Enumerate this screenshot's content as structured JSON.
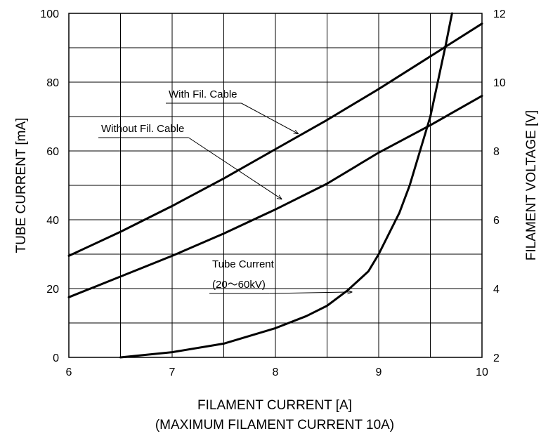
{
  "chart_data": {
    "type": "line",
    "title": "",
    "xlabel": "FILAMENT CURRENT  [A]",
    "xlabel_sub": "(MAXIMUM FILAMENT CURRENT  10A)",
    "ylabel_left": "TUBE CURRENT  [mA]",
    "ylabel_right": "FILAMENT VOLTAGE  [V]",
    "xlim": [
      6,
      10
    ],
    "ylim_left": [
      0,
      100
    ],
    "ylim_right": [
      2,
      12
    ],
    "grid": true,
    "x_ticks": [
      "6",
      "7",
      "8",
      "9",
      "10"
    ],
    "y_left_ticks": [
      "0",
      "20",
      "40",
      "60",
      "80",
      "100"
    ],
    "y_right_ticks": [
      "2",
      "4",
      "6",
      "8",
      "10",
      "12"
    ],
    "series": [
      {
        "name": "With Fil. Cable",
        "axis": "right",
        "points": [
          [
            6.0,
            4.95
          ],
          [
            6.5,
            5.65
          ],
          [
            7.0,
            6.4
          ],
          [
            7.5,
            7.2
          ],
          [
            8.0,
            8.05
          ],
          [
            8.5,
            8.9
          ],
          [
            9.0,
            9.8
          ],
          [
            9.5,
            10.75
          ],
          [
            10.0,
            11.7
          ]
        ]
      },
      {
        "name": "Without Fil. Cable",
        "axis": "right",
        "points": [
          [
            6.0,
            3.75
          ],
          [
            6.5,
            4.35
          ],
          [
            7.0,
            4.95
          ],
          [
            7.5,
            5.6
          ],
          [
            8.0,
            6.3
          ],
          [
            8.5,
            7.05
          ],
          [
            9.0,
            7.95
          ],
          [
            9.5,
            8.75
          ],
          [
            10.0,
            9.6
          ]
        ]
      },
      {
        "name": "Tube Current",
        "label_line2": "(20〜60kV)",
        "axis": "left",
        "points": [
          [
            6.5,
            0
          ],
          [
            7.0,
            1.5
          ],
          [
            7.5,
            4
          ],
          [
            8.0,
            8.5
          ],
          [
            8.3,
            12
          ],
          [
            8.5,
            15
          ],
          [
            8.7,
            19.5
          ],
          [
            8.9,
            25
          ],
          [
            9.0,
            30
          ],
          [
            9.2,
            42
          ],
          [
            9.3,
            50
          ],
          [
            9.4,
            60
          ],
          [
            9.5,
            70
          ],
          [
            9.55,
            77
          ],
          [
            9.6,
            84
          ],
          [
            9.65,
            91
          ],
          [
            9.69,
            97
          ],
          [
            9.71,
            100
          ]
        ]
      }
    ]
  }
}
